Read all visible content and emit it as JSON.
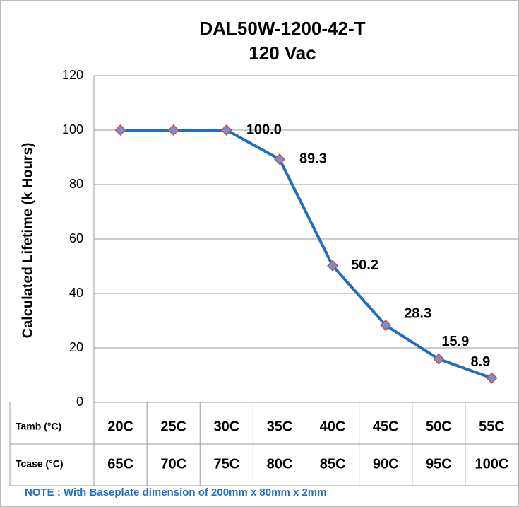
{
  "chart_data": {
    "type": "line",
    "title": "DAL50W-1200-42-T",
    "subtitle": "120 Vac",
    "y_label": "Calculated Lifetime (k Hours)",
    "category_name": "Tamb (°C)",
    "categories": [
      "20C",
      "25C",
      "30C",
      "35C",
      "40C",
      "45C",
      "50C",
      "55C"
    ],
    "category2_name": "Tcase (°C)",
    "categories2": [
      "65C",
      "70C",
      "75C",
      "80C",
      "85C",
      "90C",
      "95C",
      "100C"
    ],
    "values": [
      100,
      100,
      100,
      89.3,
      50.2,
      28.3,
      15.9,
      8.9
    ],
    "value_labels": [
      null,
      null,
      "100.0",
      "89.3",
      "50.2",
      "28.3",
      "15.9",
      "8.9"
    ],
    "color": "#1f6fbf",
    "marker_color": "#7b8fc8",
    "marker_edge_color": "#c0504d",
    "ylim": [
      0,
      120
    ],
    "yticks": [
      0,
      20,
      40,
      60,
      80,
      100,
      120
    ],
    "grid": true,
    "note": "NOTE : With Baseplate dimension of 200mm x 80mm x 2mm"
  }
}
